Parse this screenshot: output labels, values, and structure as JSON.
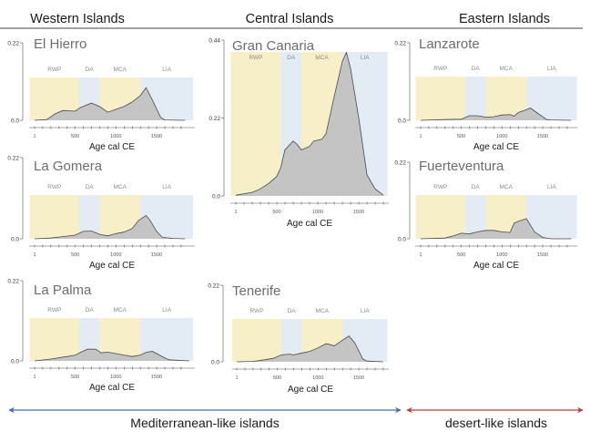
{
  "headers": {
    "western": "Western Islands",
    "central": "Central Islands",
    "eastern": "Eastern Islands"
  },
  "footer": {
    "mediterranean": "Mediterranean-like islands",
    "desert": "desert-like islands",
    "mediterranean_color": "#4a6aa8",
    "desert_color": "#c0393e"
  },
  "colors": {
    "warm_band": "#f7efc7",
    "cool_band": "#e3ebf5",
    "curve_fill": "#c4c4c4",
    "curve_line": "#4a4a4a"
  },
  "chart_data": [
    {
      "type": "area",
      "title": "El Hierro",
      "xlabel": "Age cal CE",
      "ylabel": "",
      "ylim": [
        0,
        0.22
      ],
      "yticks": [
        "0.0",
        "0.22"
      ],
      "xticks": [
        "1",
        "500",
        "1000",
        "1500"
      ],
      "periods": [
        {
          "label": "RWP",
          "start": -60,
          "end": 550,
          "kind": "warm"
        },
        {
          "label": "DA",
          "start": 550,
          "end": 800,
          "kind": "cool"
        },
        {
          "label": "MCA",
          "start": 800,
          "end": 1300,
          "kind": "warm"
        },
        {
          "label": "LIA",
          "start": 1300,
          "end": 1950,
          "kind": "cool"
        }
      ],
      "x": [
        1,
        150,
        250,
        350,
        500,
        560,
        700,
        800,
        900,
        1000,
        1100,
        1200,
        1300,
        1370,
        1450,
        1550,
        1600,
        1850
      ],
      "y": [
        0.0,
        0.002,
        0.018,
        0.028,
        0.026,
        0.036,
        0.049,
        0.039,
        0.023,
        0.031,
        0.039,
        0.052,
        0.07,
        0.093,
        0.057,
        0.008,
        0.001,
        0.0
      ]
    },
    {
      "type": "area",
      "title": "La Gomera",
      "xlabel": "Age cal CE",
      "ylabel": "",
      "ylim": [
        0,
        0.22
      ],
      "yticks": [
        "0.0",
        "0.22"
      ],
      "xticks": [
        "1",
        "500",
        "1000",
        "1500"
      ],
      "periods": [
        {
          "label": "RWP",
          "start": -60,
          "end": 550,
          "kind": "warm"
        },
        {
          "label": "DA",
          "start": 550,
          "end": 800,
          "kind": "cool"
        },
        {
          "label": "MCA",
          "start": 800,
          "end": 1300,
          "kind": "warm"
        },
        {
          "label": "LIA",
          "start": 1300,
          "end": 1950,
          "kind": "cool"
        }
      ],
      "x": [
        1,
        200,
        350,
        500,
        600,
        700,
        800,
        900,
        1000,
        1100,
        1200,
        1280,
        1370,
        1420,
        1500,
        1570,
        1700,
        1850
      ],
      "y": [
        0.0,
        0.002,
        0.006,
        0.01,
        0.02,
        0.021,
        0.012,
        0.008,
        0.014,
        0.018,
        0.028,
        0.05,
        0.063,
        0.05,
        0.02,
        0.004,
        0.001,
        0.0
      ]
    },
    {
      "type": "area",
      "title": "La Palma",
      "xlabel": "Age cal CE",
      "ylabel": "",
      "ylim": [
        0,
        0.22
      ],
      "yticks": [
        "0.0",
        "0.22"
      ],
      "xticks": [
        "1",
        "500",
        "1000",
        "1500"
      ],
      "periods": [
        {
          "label": "RWP",
          "start": -60,
          "end": 550,
          "kind": "warm"
        },
        {
          "label": "DA",
          "start": 550,
          "end": 800,
          "kind": "cool"
        },
        {
          "label": "MCA",
          "start": 800,
          "end": 1300,
          "kind": "warm"
        },
        {
          "label": "LIA",
          "start": 1300,
          "end": 1950,
          "kind": "cool"
        }
      ],
      "x": [
        1,
        200,
        400,
        500,
        580,
        650,
        750,
        820,
        900,
        1000,
        1100,
        1200,
        1300,
        1380,
        1450,
        1550,
        1650,
        1900
      ],
      "y": [
        0.0,
        0.005,
        0.012,
        0.016,
        0.025,
        0.032,
        0.032,
        0.022,
        0.024,
        0.02,
        0.016,
        0.012,
        0.016,
        0.024,
        0.026,
        0.014,
        0.003,
        0.0
      ]
    },
    {
      "type": "area",
      "title": "Gran Canaria",
      "xlabel": "Age cal CE",
      "ylabel": "",
      "ylim": [
        0,
        0.44
      ],
      "yticks": [
        "0.0",
        "0.22",
        "0.44"
      ],
      "xticks": [
        "1",
        "500",
        "1000",
        "1500"
      ],
      "periods": [
        {
          "label": "RWP",
          "start": -60,
          "end": 550,
          "kind": "warm"
        },
        {
          "label": "DA",
          "start": 550,
          "end": 800,
          "kind": "cool"
        },
        {
          "label": "MCA",
          "start": 800,
          "end": 1300,
          "kind": "warm"
        },
        {
          "label": "LIA",
          "start": 1300,
          "end": 1850,
          "kind": "cool"
        }
      ],
      "x": [
        1,
        200,
        300,
        400,
        500,
        550,
        600,
        700,
        750,
        800,
        900,
        950,
        1050,
        1100,
        1200,
        1300,
        1350,
        1400,
        1500,
        1600,
        1700,
        1800
      ],
      "y": [
        0.002,
        0.01,
        0.02,
        0.035,
        0.055,
        0.08,
        0.13,
        0.155,
        0.145,
        0.13,
        0.14,
        0.155,
        0.16,
        0.175,
        0.28,
        0.38,
        0.405,
        0.36,
        0.22,
        0.06,
        0.02,
        0.002
      ]
    },
    {
      "type": "area",
      "title": "Tenerife",
      "xlabel": "Age cal CE",
      "ylabel": "",
      "ylim": [
        0,
        0.22
      ],
      "yticks": [
        "0.0",
        "0.22"
      ],
      "xticks": [
        "1",
        "500",
        "1000",
        "1500"
      ],
      "periods": [
        {
          "label": "RWP",
          "start": -60,
          "end": 550,
          "kind": "warm"
        },
        {
          "label": "DA",
          "start": 550,
          "end": 800,
          "kind": "cool"
        },
        {
          "label": "MCA",
          "start": 800,
          "end": 1300,
          "kind": "warm"
        },
        {
          "label": "LIA",
          "start": 1300,
          "end": 1850,
          "kind": "cool"
        }
      ],
      "x": [
        1,
        200,
        350,
        450,
        550,
        650,
        700,
        780,
        900,
        1000,
        1100,
        1200,
        1300,
        1380,
        1450,
        1550,
        1600,
        1800
      ],
      "y": [
        0.0,
        0.001,
        0.006,
        0.01,
        0.02,
        0.022,
        0.02,
        0.024,
        0.03,
        0.04,
        0.052,
        0.046,
        0.062,
        0.074,
        0.055,
        0.008,
        0.002,
        0.0
      ]
    },
    {
      "type": "area",
      "title": "Lanzarote",
      "xlabel": "Age cal CE",
      "ylabel": "",
      "ylim": [
        0,
        0.22
      ],
      "yticks": [
        "0.0",
        "0.22"
      ],
      "xticks": [
        "1",
        "500",
        "1000",
        "1500"
      ],
      "periods": [
        {
          "label": "RWP",
          "start": -60,
          "end": 550,
          "kind": "warm"
        },
        {
          "label": "DA",
          "start": 550,
          "end": 800,
          "kind": "cool"
        },
        {
          "label": "MCA",
          "start": 800,
          "end": 1300,
          "kind": "warm"
        },
        {
          "label": "LIA",
          "start": 1300,
          "end": 1920,
          "kind": "cool"
        }
      ],
      "x": [
        1,
        300,
        500,
        600,
        700,
        800,
        900,
        1000,
        1100,
        1150,
        1200,
        1300,
        1350,
        1450,
        1550,
        1600,
        1850
      ],
      "y": [
        0.0,
        0.002,
        0.003,
        0.013,
        0.013,
        0.009,
        0.01,
        0.015,
        0.016,
        0.012,
        0.022,
        0.03,
        0.035,
        0.018,
        0.002,
        0.001,
        0.0
      ]
    },
    {
      "type": "area",
      "title": "Fuerteventura",
      "xlabel": "Age cal CE",
      "ylabel": "",
      "ylim": [
        0,
        0.22
      ],
      "yticks": [
        "0.0",
        "0.22"
      ],
      "xticks": [
        "1",
        "500",
        "1000",
        "1500"
      ],
      "periods": [
        {
          "label": "RWP",
          "start": -60,
          "end": 550,
          "kind": "warm"
        },
        {
          "label": "DA",
          "start": 550,
          "end": 800,
          "kind": "cool"
        },
        {
          "label": "MCA",
          "start": 800,
          "end": 1300,
          "kind": "warm"
        },
        {
          "label": "LIA",
          "start": 1300,
          "end": 1920,
          "kind": "cool"
        }
      ],
      "x": [
        1,
        300,
        400,
        500,
        600,
        700,
        800,
        900,
        1000,
        1100,
        1150,
        1200,
        1300,
        1400,
        1500,
        1600,
        1850
      ],
      "y": [
        0.0,
        0.002,
        0.008,
        0.016,
        0.014,
        0.02,
        0.024,
        0.024,
        0.02,
        0.018,
        0.045,
        0.05,
        0.058,
        0.02,
        0.004,
        0.0,
        0.0
      ]
    }
  ]
}
